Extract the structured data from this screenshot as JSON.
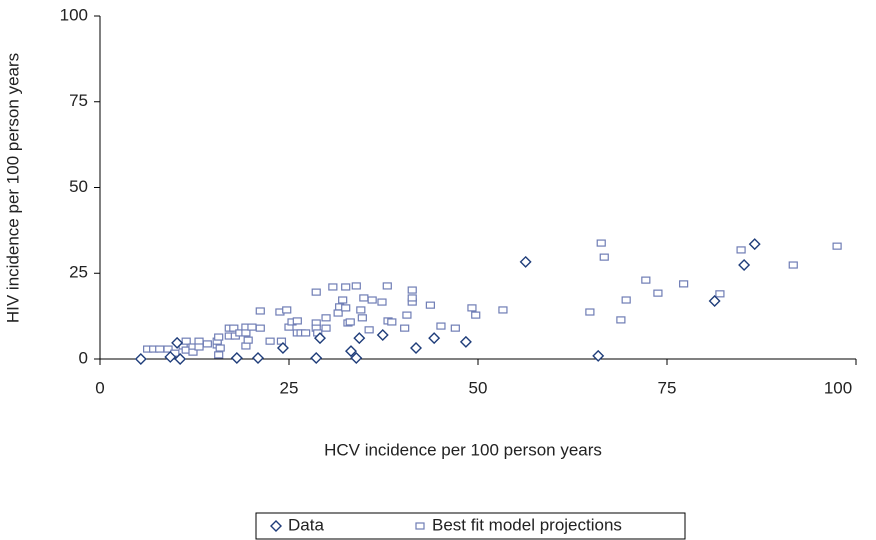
{
  "chart_data": {
    "type": "scatter",
    "xlabel": "HCV incidence per 100 person years",
    "ylabel": "HIV incidence per 100 person years",
    "xlim": [
      0,
      100
    ],
    "xticks": [
      0,
      25,
      50,
      75,
      100
    ],
    "ylim": [
      0,
      100
    ],
    "yticks": [
      0,
      25,
      50,
      75,
      100
    ],
    "grid": false,
    "legend": "bottom",
    "series": [
      {
        "name": "Data",
        "color": "#1f3d7a",
        "marker": "diamond",
        "x": [
          5.4,
          9.3,
          10.2,
          10.6,
          18.1,
          20.9,
          24.2,
          28.6,
          29.1,
          33.2,
          33.9,
          34.3,
          37.4,
          41.8,
          44.2,
          48.4,
          56.3,
          65.9,
          81.3,
          85.2,
          86.6
        ],
        "values": [
          0,
          0.6,
          4.7,
          0,
          0.3,
          0.3,
          3.2,
          0.3,
          6.1,
          2.3,
          0.3,
          6.1,
          7,
          3.2,
          6.1,
          5,
          28.3,
          0.9,
          16.9,
          27.4,
          33.5
        ]
      },
      {
        "name": "Best fit model projections",
        "color": "#6f7db5",
        "marker": "square",
        "x": [
          6.3,
          7.1,
          7.9,
          9.0,
          9.9,
          11.0,
          11.4,
          11.4,
          12.3,
          12.3,
          13.1,
          13.1,
          14.2,
          15.5,
          15.5,
          15.7,
          15.7,
          15.9,
          17.1,
          17.7,
          17.1,
          17.9,
          18.5,
          19.3,
          19.3,
          19.3,
          19.6,
          20.1,
          21.2,
          21.2,
          22.5,
          23.8,
          24.0,
          24.7,
          25.0,
          25.4,
          26.1,
          26.1,
          26.6,
          27.2,
          28.6,
          28.6,
          28.6,
          28.8,
          29.9,
          29.9,
          30.8,
          31.5,
          31.7,
          32.1,
          32.5,
          32.5,
          32.8,
          33.1,
          33.9,
          34.7,
          34.5,
          34.9,
          35.6,
          36.0,
          37.3,
          38.0,
          38.1,
          38.6,
          40.3,
          40.6,
          41.3,
          41.3,
          41.3,
          43.7,
          45.1,
          47.0,
          49.2,
          49.7,
          53.3,
          64.8,
          66.3,
          66.7,
          68.9,
          69.6,
          72.2,
          73.8,
          77.2,
          82.0,
          84.8,
          91.7,
          97.5
        ],
        "values": [
          2.9,
          2.9,
          2.9,
          2.9,
          1.7,
          3.8,
          2.6,
          5.2,
          3.5,
          2.0,
          5.2,
          3.5,
          4.4,
          4.1,
          5.2,
          6.4,
          1.2,
          3.2,
          9.0,
          9.0,
          6.7,
          6.7,
          7.6,
          9.3,
          7.6,
          3.8,
          5.5,
          9.3,
          14.0,
          9.0,
          5.2,
          13.7,
          5.2,
          14.3,
          9.3,
          10.8,
          11.1,
          7.6,
          7.6,
          7.6,
          19.5,
          10.5,
          9.0,
          7.6,
          9.0,
          12.0,
          21.0,
          13.4,
          15.2,
          17.2,
          21.0,
          14.9,
          10.5,
          10.8,
          21.3,
          12.0,
          14.3,
          17.8,
          8.5,
          17.2,
          16.6,
          21.3,
          11.1,
          10.8,
          9.0,
          12.8,
          16.6,
          20.1,
          17.8,
          15.7,
          9.6,
          9.0,
          14.9,
          12.8,
          14.3,
          13.7,
          33.8,
          29.7,
          11.4,
          17.2,
          23.0,
          19.2,
          21.9,
          19.0,
          31.8,
          27.4,
          32.9
        ]
      }
    ]
  }
}
